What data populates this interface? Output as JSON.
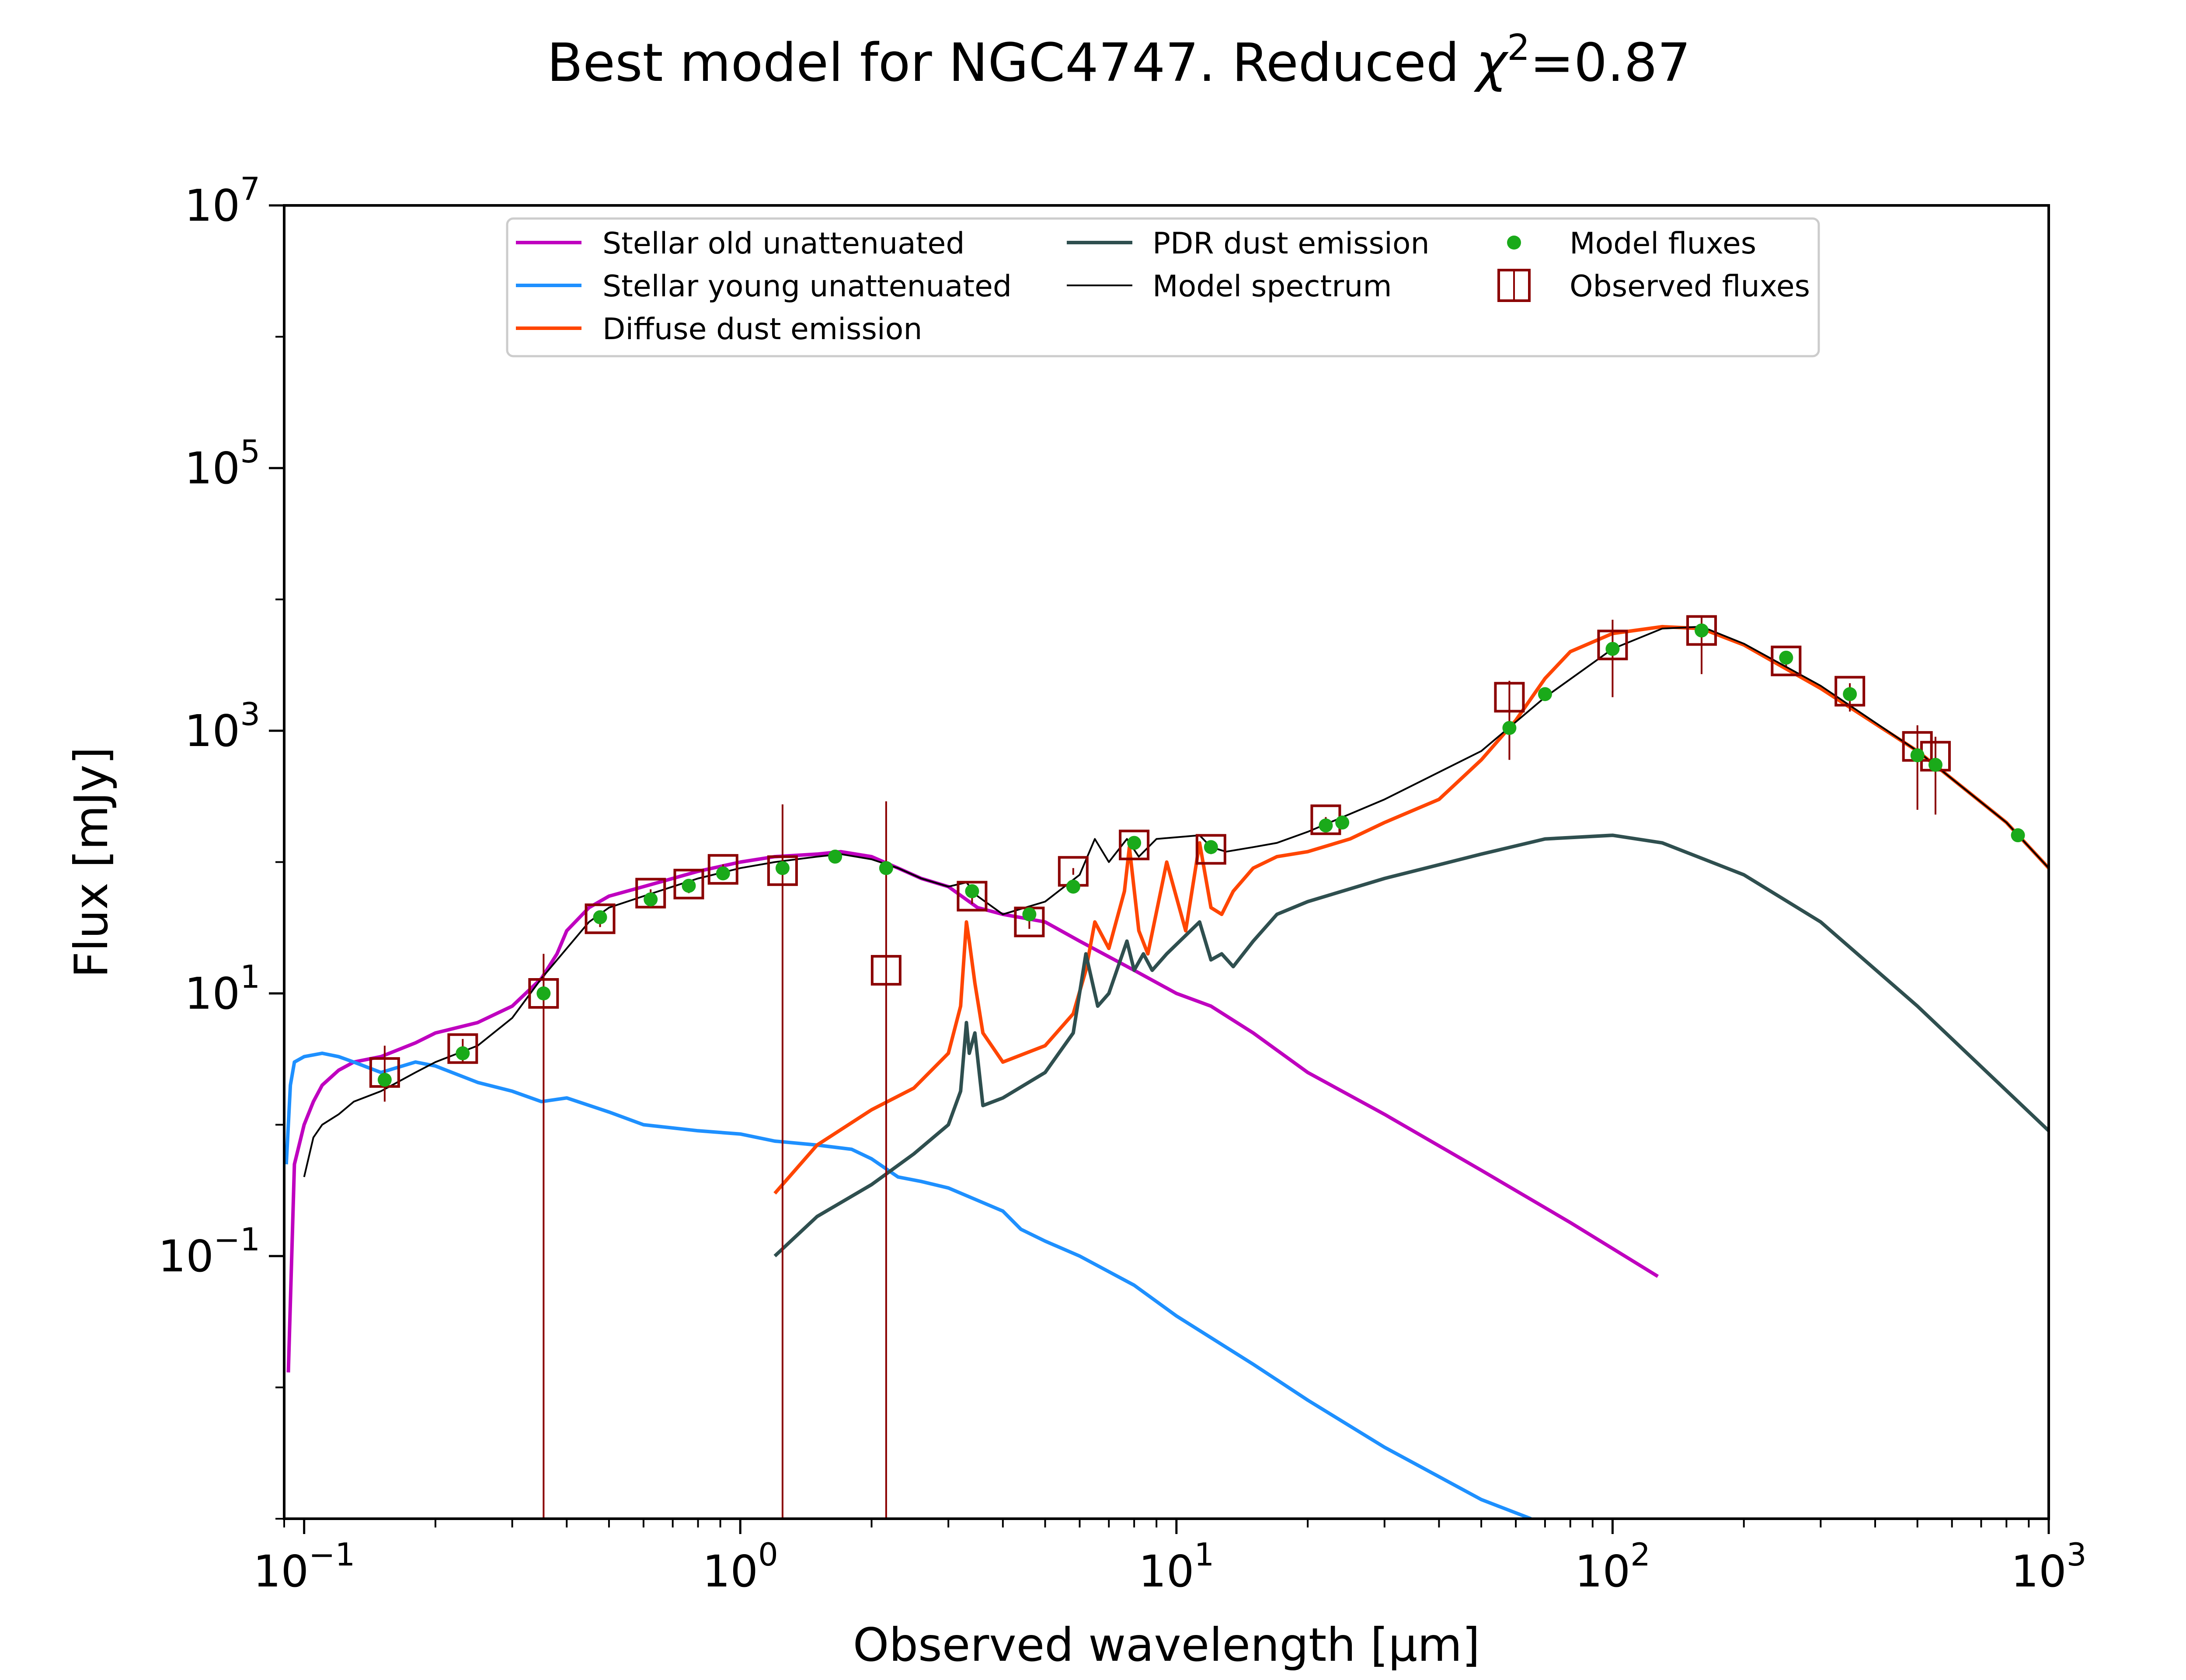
{
  "chart_data": {
    "type": "line",
    "title_prefix": "Best model for NGC4747. Reduced ",
    "title_chi": "χ",
    "title_sup": "2",
    "title_suffix": "=0.87",
    "xlabel": "Observed wavelength [μm]",
    "ylabel": "Flux [mJy]",
    "x_scale": "log",
    "y_scale": "log",
    "xlim": [
      0.09,
      1000
    ],
    "ylim": [
      0.001,
      10000000
    ],
    "x_ticks": [
      {
        "value": 0.1,
        "base": "10",
        "exp": "−1"
      },
      {
        "value": 1,
        "base": "10",
        "exp": "0"
      },
      {
        "value": 10,
        "base": "10",
        "exp": "1"
      },
      {
        "value": 100,
        "base": "10",
        "exp": "2"
      },
      {
        "value": 1000,
        "base": "10",
        "exp": "3"
      }
    ],
    "y_ticks": [
      {
        "value": 0.1,
        "base": "10",
        "exp": "−1"
      },
      {
        "value": 10,
        "base": "10",
        "exp": "1"
      },
      {
        "value": 1000,
        "base": "10",
        "exp": "3"
      },
      {
        "value": 100000,
        "base": "10",
        "exp": "5"
      },
      {
        "value": 10000000,
        "base": "10",
        "exp": "7"
      }
    ],
    "grid": false,
    "legend_position": "top-center",
    "series": [
      {
        "name": "Stellar old unattenuated",
        "kind": "line",
        "color": "#bf00bf",
        "x": [
          0.092,
          0.095,
          0.1,
          0.105,
          0.11,
          0.12,
          0.13,
          0.15,
          0.18,
          0.2,
          0.25,
          0.3,
          0.35,
          0.38,
          0.4,
          0.45,
          0.5,
          0.6,
          0.7,
          0.8,
          1.0,
          1.2,
          1.5,
          1.7,
          2.0,
          2.3,
          2.6,
          3.0,
          3.5,
          4.0,
          5.0,
          6.0,
          8.0,
          10,
          12,
          15,
          20,
          30,
          50,
          80,
          127
        ],
        "y": [
          0.013,
          0.5,
          1.0,
          1.5,
          2.0,
          2.6,
          3.0,
          3.3,
          4.2,
          5.0,
          6.0,
          8.0,
          13,
          20,
          30,
          45,
          55,
          65,
          75,
          85,
          100,
          110,
          115,
          120,
          110,
          90,
          75,
          65,
          45,
          40,
          35,
          25,
          15,
          10,
          8.0,
          5.0,
          2.5,
          1.2,
          0.45,
          0.18,
          0.07
        ]
      },
      {
        "name": "Stellar young unattenuated",
        "kind": "line",
        "color": "#1e90ff",
        "x": [
          0.091,
          0.093,
          0.095,
          0.1,
          0.11,
          0.12,
          0.13,
          0.15,
          0.18,
          0.2,
          0.25,
          0.3,
          0.35,
          0.4,
          0.5,
          0.6,
          0.8,
          1.0,
          1.2,
          1.5,
          1.8,
          2.0,
          2.3,
          2.6,
          3.0,
          4.0,
          4.4,
          5.0,
          6.0,
          8.0,
          10,
          15,
          20,
          30,
          50,
          65
        ],
        "y": [
          0.5,
          2.0,
          3.0,
          3.3,
          3.5,
          3.3,
          3.0,
          2.5,
          3.0,
          2.8,
          2.1,
          1.8,
          1.5,
          1.6,
          1.25,
          1.0,
          0.9,
          0.85,
          0.75,
          0.7,
          0.65,
          0.55,
          0.4,
          0.37,
          0.33,
          0.22,
          0.16,
          0.13,
          0.1,
          0.06,
          0.035,
          0.015,
          0.008,
          0.0035,
          0.0014,
          0.001
        ]
      },
      {
        "name": "Diffuse dust emission",
        "kind": "line",
        "color": "#ff4500",
        "x": [
          1.2,
          1.5,
          2.0,
          2.5,
          3.0,
          3.2,
          3.3,
          3.35,
          3.45,
          3.6,
          4.0,
          5.0,
          5.8,
          6.2,
          6.5,
          7.0,
          7.6,
          7.8,
          8.2,
          8.6,
          9.5,
          10.5,
          11.3,
          12.0,
          12.7,
          13.5,
          15,
          17,
          20,
          25,
          30,
          40,
          50,
          60,
          70,
          80,
          100,
          130,
          160,
          200,
          300,
          500,
          800,
          1000
        ],
        "y": [
          0.3,
          0.7,
          1.3,
          1.9,
          3.5,
          8.0,
          35,
          25,
          12,
          5.0,
          3.0,
          4.0,
          7.0,
          15,
          35,
          22,
          60,
          130,
          30,
          20,
          100,
          30,
          140,
          45,
          40,
          60,
          90,
          110,
          120,
          150,
          200,
          300,
          600,
          1200,
          2500,
          4000,
          5500,
          6200,
          6000,
          4500,
          2100,
          700,
          200,
          90
        ]
      },
      {
        "name": "PDR dust emission",
        "kind": "line",
        "color": "#2f4f4f",
        "x": [
          1.2,
          1.5,
          2.0,
          2.5,
          3.0,
          3.2,
          3.3,
          3.35,
          3.45,
          3.6,
          4.0,
          5.0,
          5.8,
          6.2,
          6.6,
          7.0,
          7.7,
          8.0,
          8.4,
          8.8,
          9.5,
          11.3,
          12.0,
          12.7,
          13.5,
          15,
          17,
          20,
          30,
          50,
          70,
          100,
          130,
          200,
          300,
          500,
          1000
        ],
        "y": [
          0.1,
          0.2,
          0.35,
          0.6,
          1.0,
          1.8,
          6.0,
          3.5,
          5.0,
          1.4,
          1.6,
          2.5,
          5.0,
          20,
          8.0,
          10,
          25,
          15,
          20,
          15,
          20,
          35,
          18,
          20,
          16,
          25,
          40,
          50,
          75,
          115,
          150,
          160,
          140,
          80,
          35,
          8,
          0.9
        ]
      },
      {
        "name": "Model spectrum",
        "kind": "line",
        "color": "#000000",
        "x": [
          0.1,
          0.105,
          0.11,
          0.12,
          0.13,
          0.15,
          0.18,
          0.2,
          0.25,
          0.3,
          0.35,
          0.4,
          0.45,
          0.5,
          0.6,
          0.7,
          0.8,
          1.0,
          1.2,
          1.5,
          1.7,
          2.0,
          2.3,
          2.6,
          3.0,
          3.3,
          3.5,
          4.0,
          5.0,
          6.0,
          6.5,
          7.0,
          7.7,
          8.2,
          9.0,
          11.3,
          12.0,
          13,
          15,
          17,
          20,
          30,
          50,
          70,
          100,
          130,
          160,
          200,
          300,
          500,
          800,
          1000
        ],
        "y": [
          0.4,
          0.8,
          1.0,
          1.2,
          1.5,
          1.8,
          2.5,
          3.0,
          4.0,
          6.5,
          13,
          22,
          35,
          45,
          55,
          65,
          75,
          90,
          100,
          110,
          115,
          105,
          90,
          75,
          65,
          70,
          55,
          40,
          50,
          80,
          150,
          100,
          150,
          110,
          150,
          160,
          130,
          120,
          130,
          140,
          170,
          300,
          700,
          1800,
          4200,
          6000,
          6200,
          4600,
          2200,
          700,
          200,
          90
        ]
      },
      {
        "name": "Model fluxes",
        "kind": "scatter",
        "color": "#1aaa1a",
        "x": [
          0.153,
          0.231,
          0.354,
          0.477,
          0.623,
          0.762,
          0.913,
          1.25,
          1.65,
          2.16,
          3.4,
          4.6,
          5.8,
          8.0,
          12,
          22,
          24,
          58,
          70,
          100,
          160,
          250,
          350,
          500,
          550,
          850
        ],
        "y": [
          2.2,
          3.5,
          10,
          38,
          52,
          66,
          82,
          90,
          110,
          90,
          60,
          40,
          65,
          140,
          130,
          190,
          200,
          1050,
          1900,
          4200,
          5800,
          3600,
          1900,
          650,
          550,
          160
        ]
      },
      {
        "name": "Observed fluxes",
        "kind": "errorbar",
        "color": "#8b0000",
        "x": [
          0.153,
          0.231,
          0.354,
          0.477,
          0.623,
          0.762,
          0.913,
          1.25,
          2.16,
          3.4,
          4.6,
          5.8,
          8.0,
          12,
          22,
          58,
          100,
          160,
          250,
          350,
          500,
          550
        ],
        "y": [
          2.5,
          3.8,
          10,
          37,
          58,
          68,
          88,
          86,
          15,
          55,
          35,
          85,
          135,
          125,
          210,
          1800,
          4500,
          5800,
          3400,
          2000,
          760,
          640
        ],
        "yerr_low": [
          1.5,
          3.0,
          0.001,
          32,
          52,
          58,
          78,
          0.001,
          0.001,
          48,
          31,
          80,
          125,
          115,
          200,
          600,
          1800,
          2700,
          3100,
          1400,
          250,
          230
        ],
        "yerr_high": [
          4.0,
          4.5,
          20,
          40,
          62,
          72,
          96,
          275,
          290,
          60,
          39,
          90,
          145,
          135,
          220,
          2400,
          7000,
          7500,
          3700,
          2300,
          1100,
          900
        ]
      }
    ]
  }
}
